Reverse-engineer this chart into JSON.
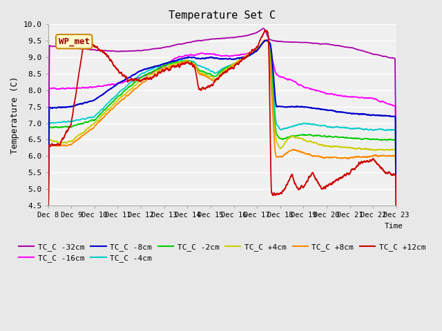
{
  "title": "Temperature Set C",
  "xlabel": "Time",
  "ylabel": "Temperature (C)",
  "ylim": [
    4.5,
    10.0
  ],
  "yticks": [
    4.5,
    5.0,
    5.5,
    6.0,
    6.5,
    7.0,
    7.5,
    8.0,
    8.5,
    9.0,
    9.5,
    10.0
  ],
  "xtick_labels": [
    "Dec 8",
    "Dec 9",
    "Dec 10",
    "Dec 11",
    "Dec 12",
    "Dec 13",
    "Dec 14",
    "Dec 15",
    "Dec 16",
    "Dec 17",
    "Dec 18",
    "Dec 19",
    "Dec 20",
    "Dec 21",
    "Dec 22",
    "Dec 23"
  ],
  "series_colors": {
    "TC_C -32cm": "#aa00aa",
    "TC_C -16cm": "#ff00ff",
    "TC_C -8cm": "#0000cc",
    "TC_C -4cm": "#00cccc",
    "TC_C -2cm": "#00cc00",
    "TC_C +4cm": "#cccc00",
    "TC_C +8cm": "#ff8800",
    "TC_C +12cm": "#cc0000"
  },
  "series_order": [
    "TC_C -32cm",
    "TC_C -16cm",
    "TC_C -8cm",
    "TC_C -4cm",
    "TC_C -2cm",
    "TC_C +4cm",
    "TC_C +8cm",
    "TC_C +12cm"
  ],
  "wp_met_box_color": "#ffffcc",
  "wp_met_border_color": "#cc8800",
  "wp_met_text_color": "#990000",
  "bg_color": "#e8e8e8",
  "plot_bg_color": "#f0f0f0"
}
